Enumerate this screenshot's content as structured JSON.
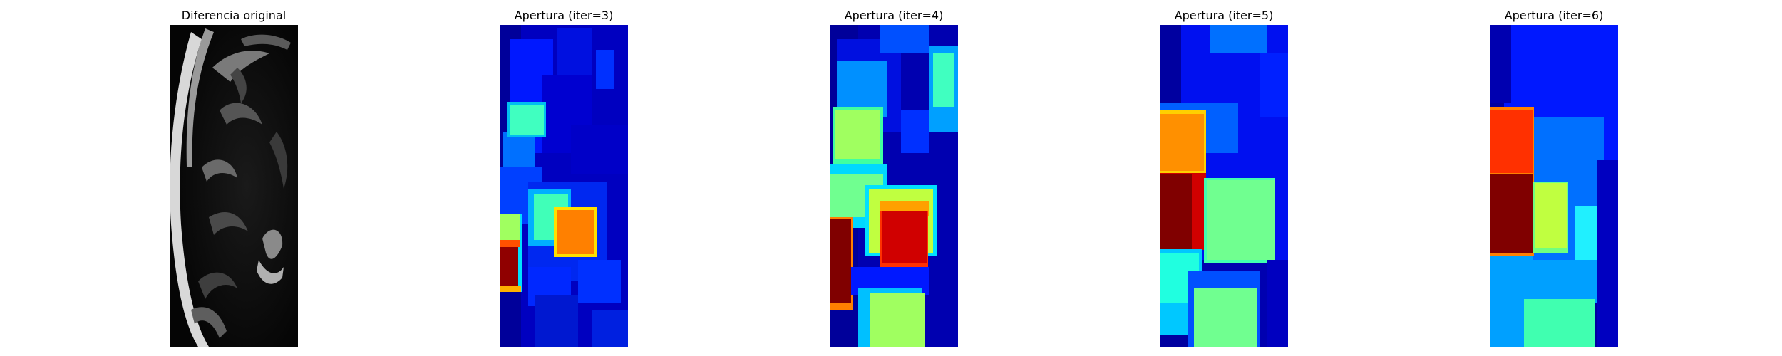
{
  "panels": [
    {
      "title": "Diferencia original",
      "colormap": "gray"
    },
    {
      "title": "Apertura (iter=3)",
      "colormap": "jet"
    },
    {
      "title": "Apertura (iter=4)",
      "colormap": "jet"
    },
    {
      "title": "Apertura (iter=5)",
      "colormap": "jet"
    },
    {
      "title": "Apertura (iter=6)",
      "colormap": "jet"
    }
  ]
}
